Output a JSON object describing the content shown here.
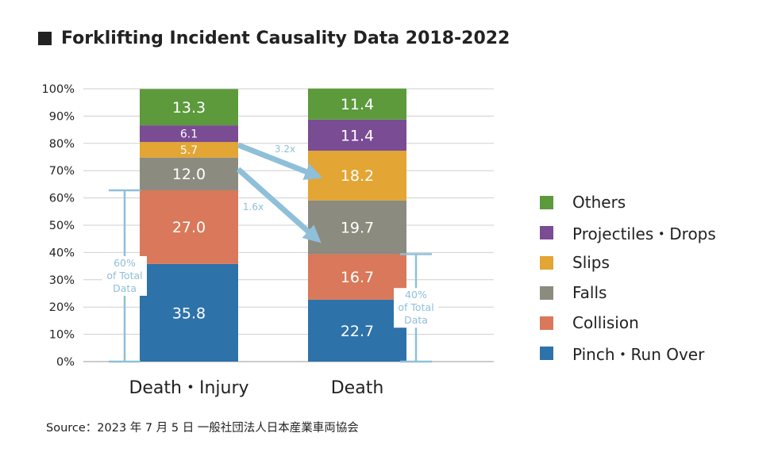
{
  "title": "Forklifting Incident Causality Data 2018-2022",
  "source": "Source：2023 年 7 月 5 日 一般社団法人日本産業車両協会",
  "chart_data": {
    "type": "bar",
    "stacked": true,
    "categories": [
      "Death・Injury",
      "Death"
    ],
    "series": [
      {
        "name": "Pinch・Run Over",
        "color": "#2e72aa",
        "values": [
          35.8,
          22.7
        ],
        "labels": [
          "35.8",
          "22.7"
        ]
      },
      {
        "name": "Collision",
        "color": "#d9785a",
        "values": [
          27.0,
          16.7
        ],
        "labels": [
          "27.0",
          "16.7"
        ]
      },
      {
        "name": "Falls",
        "color": "#8b8b7f",
        "values": [
          12.0,
          19.7
        ],
        "labels": [
          "12.0",
          "19.7"
        ]
      },
      {
        "name": "Slips",
        "color": "#e3a534",
        "values": [
          5.7,
          18.2
        ],
        "labels": [
          "5.7",
          "18.2"
        ]
      },
      {
        "name": "Projectiles・Drops",
        "color": "#7a4c94",
        "values": [
          6.1,
          11.4
        ],
        "labels": [
          "6.1",
          "11.4"
        ]
      },
      {
        "name": "Others",
        "color": "#5c9a3c",
        "values": [
          13.3,
          11.4
        ],
        "labels": [
          "13.3",
          "11.4"
        ]
      }
    ],
    "yticks": [
      "0%",
      "10%",
      "20%",
      "30%",
      "40%",
      "50%",
      "60%",
      "70%",
      "80%",
      "90%",
      "100%"
    ],
    "ylim": [
      0,
      100
    ],
    "legend_position": "right",
    "annotations": [
      {
        "text": "3.2x",
        "from_series": "Slips",
        "note": "arrow from Death・Injury to Death"
      },
      {
        "text": "1.6x",
        "from_series": "Falls",
        "note": "arrow from Death・Injury to Death"
      }
    ],
    "brackets": [
      {
        "category": "Death・Injury",
        "range": [
          0,
          62.8
        ],
        "lines": [
          "60%",
          "of Total",
          "Data"
        ]
      },
      {
        "category": "Death",
        "range": [
          0,
          39.4
        ],
        "lines": [
          "40%",
          "of Total",
          "Data"
        ]
      }
    ],
    "accent_color": "#8fbfd9"
  }
}
